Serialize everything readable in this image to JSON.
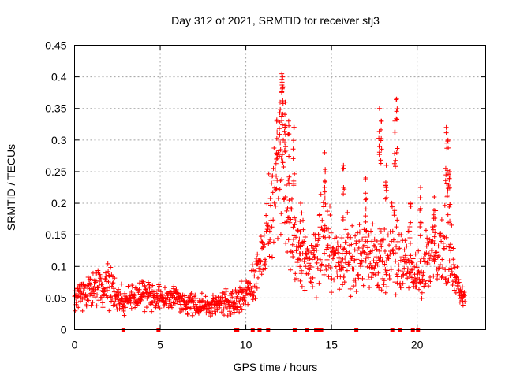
{
  "chart_data": {
    "type": "scatter",
    "title": "Day 312 of 2021, SRMTID for receiver stj3",
    "xlabel": "GPS time / hours",
    "ylabel": "SRMTID / TECUs",
    "xlim": [
      0,
      24
    ],
    "ylim": [
      0,
      0.45
    ],
    "x_ticks": [
      0,
      5,
      10,
      15,
      20
    ],
    "x_tick_labels": [
      "0",
      "5",
      "10",
      "15",
      "20"
    ],
    "y_ticks": [
      0,
      0.05,
      0.1,
      0.15,
      0.2,
      0.25,
      0.3,
      0.35,
      0.4,
      0.45
    ],
    "y_tick_labels": [
      "0",
      "0.05",
      "0.1",
      "0.15",
      "0.2",
      "0.25",
      "0.3",
      "0.35",
      "0.4",
      "0.45"
    ],
    "grid": true,
    "marker": "plus",
    "series_color": "#ff0000",
    "envelope": {
      "description": "approximate trend of the dense scatter, hours vs TECU",
      "x": [
        0.0,
        0.5,
        1.0,
        1.5,
        2.0,
        2.5,
        3.0,
        3.5,
        4.0,
        4.5,
        5.0,
        5.5,
        6.0,
        6.5,
        7.0,
        7.5,
        8.0,
        8.5,
        9.0,
        9.5,
        10.0,
        10.5,
        11.0,
        11.5,
        11.8,
        12.0,
        12.3,
        12.6,
        13.0,
        13.3,
        13.6,
        14.0,
        14.5,
        15.0,
        15.5,
        16.0,
        16.3,
        16.7,
        17.0,
        17.5,
        18.0,
        18.3,
        18.7,
        19.0,
        19.3,
        19.6,
        20.0,
        20.3,
        20.6,
        21.0,
        21.3,
        21.7,
        22.0,
        22.3,
        22.6,
        22.8
      ],
      "mid": [
        0.05,
        0.06,
        0.07,
        0.065,
        0.07,
        0.05,
        0.045,
        0.05,
        0.055,
        0.05,
        0.05,
        0.05,
        0.05,
        0.04,
        0.04,
        0.038,
        0.035,
        0.04,
        0.04,
        0.045,
        0.06,
        0.08,
        0.12,
        0.19,
        0.24,
        0.25,
        0.22,
        0.17,
        0.13,
        0.12,
        0.1,
        0.12,
        0.15,
        0.12,
        0.1,
        0.13,
        0.1,
        0.11,
        0.12,
        0.11,
        0.12,
        0.1,
        0.15,
        0.1,
        0.11,
        0.1,
        0.08,
        0.1,
        0.12,
        0.13,
        0.11,
        0.14,
        0.1,
        0.07,
        0.05,
        0.05
      ],
      "spread": [
        0.02,
        0.025,
        0.03,
        0.03,
        0.03,
        0.02,
        0.02,
        0.02,
        0.02,
        0.02,
        0.02,
        0.02,
        0.02,
        0.018,
        0.015,
        0.015,
        0.015,
        0.015,
        0.02,
        0.02,
        0.025,
        0.03,
        0.05,
        0.08,
        0.1,
        0.1,
        0.09,
        0.08,
        0.06,
        0.05,
        0.04,
        0.05,
        0.07,
        0.06,
        0.04,
        0.06,
        0.04,
        0.05,
        0.05,
        0.05,
        0.06,
        0.05,
        0.09,
        0.06,
        0.04,
        0.04,
        0.035,
        0.05,
        0.06,
        0.06,
        0.05,
        0.08,
        0.05,
        0.03,
        0.02,
        0.02
      ]
    },
    "spikes": [
      {
        "x": 11.8,
        "y": 0.33
      },
      {
        "x": 12.0,
        "y": 0.36
      },
      {
        "x": 12.1,
        "y": 0.405
      },
      {
        "x": 12.15,
        "y": 0.4
      },
      {
        "x": 12.3,
        "y": 0.36
      },
      {
        "x": 12.5,
        "y": 0.33
      },
      {
        "x": 12.8,
        "y": 0.32
      },
      {
        "x": 13.2,
        "y": 0.2
      },
      {
        "x": 14.6,
        "y": 0.28
      },
      {
        "x": 15.7,
        "y": 0.26
      },
      {
        "x": 17.0,
        "y": 0.24
      },
      {
        "x": 17.8,
        "y": 0.35
      },
      {
        "x": 17.9,
        "y": 0.33
      },
      {
        "x": 18.2,
        "y": 0.26
      },
      {
        "x": 18.7,
        "y": 0.33
      },
      {
        "x": 18.8,
        "y": 0.365
      },
      {
        "x": 19.6,
        "y": 0.2
      },
      {
        "x": 20.2,
        "y": 0.225
      },
      {
        "x": 21.0,
        "y": 0.21
      },
      {
        "x": 21.7,
        "y": 0.32
      },
      {
        "x": 21.8,
        "y": 0.3
      },
      {
        "x": 21.9,
        "y": 0.25
      }
    ],
    "zero_markers_x": [
      2.85,
      4.9,
      9.4,
      9.5,
      10.4,
      10.8,
      11.3,
      12.85,
      13.55,
      14.1,
      14.3,
      14.4,
      16.45,
      18.55,
      19.0,
      19.75,
      20.05
    ]
  }
}
